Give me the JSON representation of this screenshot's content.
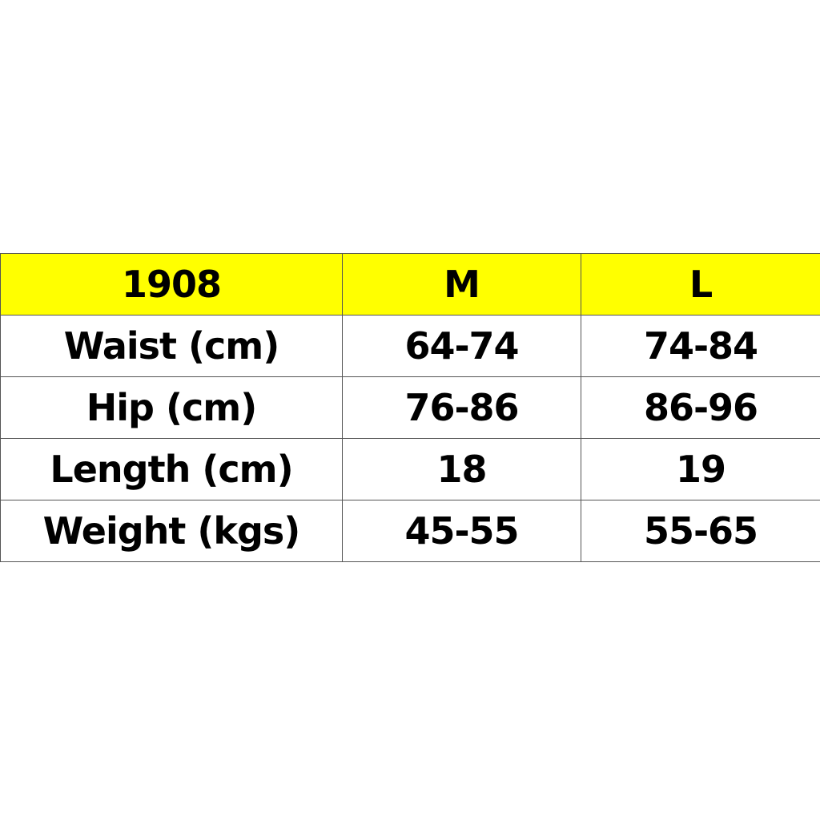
{
  "colors": {
    "header_background": "#FFFF00",
    "border": "#555555"
  },
  "table": {
    "header": [
      "1908",
      "M",
      "L"
    ],
    "rows": [
      [
        "Waist (cm)",
        "64-74",
        "74-84"
      ],
      [
        "Hip (cm)",
        "76-86",
        "86-96"
      ],
      [
        "Length (cm)",
        "18",
        "19"
      ],
      [
        "Weight (kgs)",
        "45-55",
        "55-65"
      ]
    ]
  }
}
